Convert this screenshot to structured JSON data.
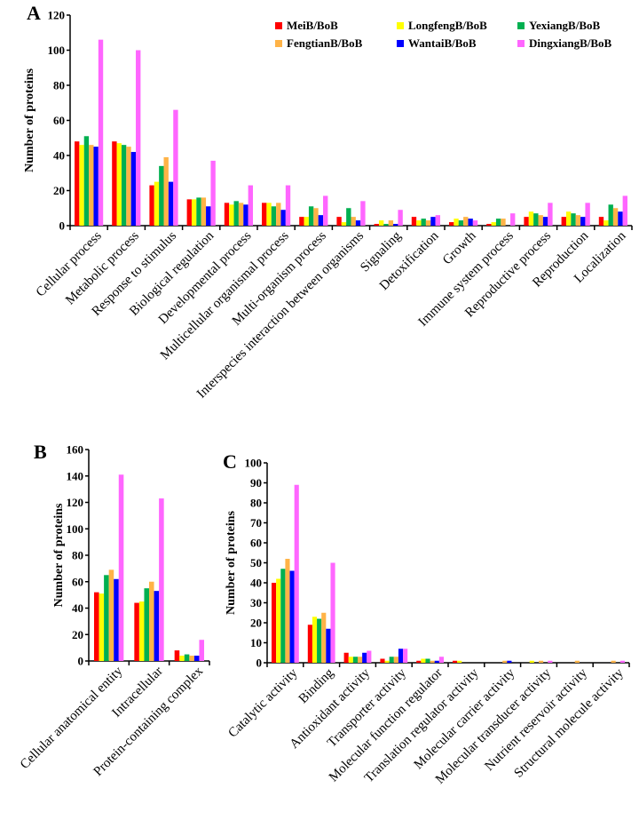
{
  "series_colors": [
    "#ff0000",
    "#ffff00",
    "#00b050",
    "#ffb347",
    "#0000ff",
    "#ff66ff"
  ],
  "legend": [
    "MeiB/BoB",
    "LongfengB/BoB",
    "YexiangB/BoB",
    "FengtianB/BoB",
    "WantaiB/BoB",
    "DingxiangB/BoB"
  ],
  "chart_data": [
    {
      "panel": "A",
      "type": "bar",
      "title": "",
      "xlabel": "",
      "ylabel": "Number of proteins",
      "ylim": [
        0,
        120
      ],
      "yticks": [
        0,
        20,
        40,
        60,
        80,
        100,
        120
      ],
      "legend_position": "top-right",
      "categories": [
        "Cellular process",
        "Metabolic process",
        "Response to stimulus",
        "Biological regulation",
        "Developmental process",
        "Multicellular organismal process",
        "Multi-organism process",
        "Interspecies interaction between organisms",
        "Signaling",
        "Detoxification",
        "Growth",
        "Immune system process",
        "Reproductive process",
        "Reproduction",
        "Localization"
      ],
      "series": [
        {
          "name": "MeiB/BoB",
          "values": [
            48,
            48,
            23,
            15,
            13,
            13,
            5,
            5,
            1,
            5,
            2,
            1,
            5,
            5,
            5
          ]
        },
        {
          "name": "LongfengB/BoB",
          "values": [
            46,
            47,
            25,
            15,
            12,
            13,
            5,
            2,
            3,
            3,
            4,
            2,
            8,
            8,
            3
          ]
        },
        {
          "name": "YexiangB/BoB",
          "values": [
            51,
            46,
            34,
            16,
            14,
            11,
            11,
            10,
            1,
            4,
            3,
            4,
            7,
            7,
            12
          ]
        },
        {
          "name": "FengtianB/BoB",
          "values": [
            46,
            45,
            39,
            16,
            13,
            13,
            10,
            5,
            3,
            3,
            5,
            4,
            6,
            6,
            10
          ]
        },
        {
          "name": "WantaiB/BoB",
          "values": [
            45,
            42,
            25,
            11,
            12,
            9,
            6,
            3,
            1,
            5,
            4,
            0,
            5,
            5,
            8
          ]
        },
        {
          "name": "DingxiangB/BoB",
          "values": [
            106,
            100,
            66,
            37,
            23,
            23,
            17,
            14,
            9,
            6,
            3,
            7,
            13,
            13,
            17
          ]
        }
      ]
    },
    {
      "panel": "B",
      "type": "bar",
      "title": "",
      "xlabel": "",
      "ylabel": "Number of proteins",
      "ylim": [
        0,
        160
      ],
      "yticks": [
        0,
        20,
        40,
        60,
        80,
        100,
        120,
        140,
        160
      ],
      "categories": [
        "Cellular anatomical entity",
        "Intracellular",
        "Protein-containing complex"
      ],
      "series": [
        {
          "name": "MeiB/BoB",
          "values": [
            52,
            44,
            8
          ]
        },
        {
          "name": "LongfengB/BoB",
          "values": [
            51,
            45,
            4
          ]
        },
        {
          "name": "YexiangB/BoB",
          "values": [
            65,
            55,
            5
          ]
        },
        {
          "name": "FengtianB/BoB",
          "values": [
            69,
            60,
            4
          ]
        },
        {
          "name": "WantaiB/BoB",
          "values": [
            62,
            53,
            4
          ]
        },
        {
          "name": "DingxiangB/BoB",
          "values": [
            141,
            123,
            16
          ]
        }
      ]
    },
    {
      "panel": "C",
      "type": "bar",
      "title": "",
      "xlabel": "",
      "ylabel": "Number of proteins",
      "ylim": [
        0,
        100
      ],
      "yticks": [
        0,
        10,
        20,
        30,
        40,
        50,
        60,
        70,
        80,
        90,
        100
      ],
      "categories": [
        "Catalytic activity",
        "Binding",
        "Antioxidant activity",
        "Transporter activity",
        "Molecular function regulator",
        "Translation regulator activity",
        "Molecular carrier activity",
        "Molecular transducer activity",
        "Nutrient reservoir activity",
        "Structural molecule activity"
      ],
      "series": [
        {
          "name": "MeiB/BoB",
          "values": [
            40,
            19,
            5,
            2,
            1,
            1,
            0,
            0,
            0,
            0
          ]
        },
        {
          "name": "LongfengB/BoB",
          "values": [
            42,
            23,
            3,
            1,
            2,
            1,
            0,
            1,
            0,
            0
          ]
        },
        {
          "name": "YexiangB/BoB",
          "values": [
            47,
            22,
            3,
            3,
            2,
            0,
            0,
            0,
            0,
            0
          ]
        },
        {
          "name": "FengtianB/BoB",
          "values": [
            52,
            25,
            3,
            3,
            1,
            0,
            1,
            1,
            1,
            1
          ]
        },
        {
          "name": "WantaiB/BoB",
          "values": [
            46,
            17,
            5,
            7,
            1,
            0,
            1,
            0,
            0,
            0
          ]
        },
        {
          "name": "DingxiangB/BoB",
          "values": [
            89,
            50,
            6,
            7,
            3,
            0,
            0,
            1,
            0,
            1
          ]
        }
      ]
    }
  ]
}
